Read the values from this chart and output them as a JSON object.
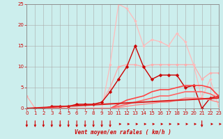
{
  "xlabel": "Vent moyen/en rafales ( km/h )",
  "background_color": "#cceeed",
  "grid_color": "#aaaaaa",
  "xlim": [
    0,
    23
  ],
  "ylim": [
    0,
    25
  ],
  "yticks": [
    0,
    5,
    10,
    15,
    20,
    25
  ],
  "xticks": [
    0,
    1,
    2,
    3,
    4,
    5,
    6,
    7,
    8,
    9,
    10,
    11,
    12,
    13,
    14,
    15,
    16,
    17,
    18,
    19,
    20,
    21,
    22,
    23
  ],
  "lines": [
    {
      "x": [
        0,
        1,
        2,
        3,
        4,
        5,
        6,
        7,
        8,
        9,
        10,
        11,
        12,
        13,
        14,
        15,
        16,
        17,
        18,
        19,
        20,
        21,
        22,
        23
      ],
      "y": [
        3,
        0,
        0,
        0.5,
        0.5,
        0.5,
        1,
        1,
        1,
        1.5,
        5,
        10,
        10.5,
        10.5,
        10,
        10.5,
        10.5,
        10.5,
        10.5,
        10.5,
        10.5,
        7,
        8.5,
        8.5
      ],
      "color": "#ffaaaa",
      "lw": 0.9,
      "marker": "D",
      "ms": 2.0
    },
    {
      "x": [
        0,
        1,
        2,
        3,
        4,
        5,
        6,
        7,
        8,
        9,
        10,
        11,
        12,
        13,
        14,
        15,
        16,
        17,
        18,
        19,
        20,
        21,
        22,
        23
      ],
      "y": [
        0,
        0,
        0,
        0,
        0,
        0,
        0,
        0,
        0,
        0,
        10.5,
        25,
        24,
        21,
        15,
        16.5,
        16,
        15,
        18,
        16,
        10.5,
        2.5,
        7,
        0.5
      ],
      "color": "#ffbbbb",
      "lw": 0.9,
      "marker": "D",
      "ms": 2.0
    },
    {
      "x": [
        0,
        1,
        2,
        3,
        4,
        5,
        6,
        7,
        8,
        9,
        10,
        11,
        12,
        13,
        14,
        15,
        16,
        17,
        18,
        19,
        20,
        21,
        22,
        23
      ],
      "y": [
        0,
        0,
        0,
        0.5,
        0.5,
        0.5,
        1,
        1,
        1,
        1.5,
        4,
        7,
        10,
        15,
        10,
        7,
        8,
        8,
        8,
        5,
        5.5,
        0,
        2.5,
        3
      ],
      "color": "#cc0000",
      "lw": 1.0,
      "marker": "D",
      "ms": 2.5
    },
    {
      "x": [
        0,
        1,
        2,
        3,
        4,
        5,
        6,
        7,
        8,
        9,
        10,
        11,
        12,
        13,
        14,
        15,
        16,
        17,
        18,
        19,
        20,
        21,
        22,
        23
      ],
      "y": [
        0,
        0,
        0,
        0,
        0,
        0,
        0,
        0,
        0,
        0,
        0,
        1,
        2,
        2.5,
        3,
        4,
        4.5,
        4.5,
        5,
        5.5,
        5.5,
        5.5,
        5,
        3
      ],
      "color": "#ff4444",
      "lw": 1.2,
      "marker": null,
      "ms": 0
    },
    {
      "x": [
        0,
        1,
        2,
        3,
        4,
        5,
        6,
        7,
        8,
        9,
        10,
        11,
        12,
        13,
        14,
        15,
        16,
        17,
        18,
        19,
        20,
        21,
        22,
        23
      ],
      "y": [
        0,
        0,
        0,
        0,
        0,
        0,
        0,
        0,
        0,
        0,
        0,
        0.5,
        1,
        1.5,
        2,
        2.5,
        3,
        3,
        3.5,
        4,
        4,
        4,
        3.5,
        2.5
      ],
      "color": "#ff6666",
      "lw": 1.2,
      "marker": null,
      "ms": 0
    },
    {
      "x": [
        0,
        1,
        2,
        3,
        4,
        5,
        6,
        7,
        8,
        9,
        10,
        11,
        12,
        13,
        14,
        15,
        16,
        17,
        18,
        19,
        20,
        21,
        22,
        23
      ],
      "y": [
        0,
        0,
        0,
        0,
        0,
        0,
        0,
        0,
        0,
        0,
        0,
        0.2,
        0.5,
        0.8,
        1,
        1.2,
        1.5,
        1.5,
        2,
        2.5,
        2.5,
        2.5,
        2,
        1.5
      ],
      "color": "#ff8888",
      "lw": 1.0,
      "marker": null,
      "ms": 0
    },
    {
      "x": [
        0,
        23
      ],
      "y": [
        0,
        2.5
      ],
      "color": "#dd2222",
      "lw": 1.5,
      "marker": null,
      "ms": 0
    }
  ],
  "arrow_down_x": [
    0,
    1,
    2,
    3,
    4,
    5,
    6,
    7,
    8,
    9,
    10,
    21
  ],
  "arrow_right_x": [
    11,
    12,
    13,
    14,
    15,
    16,
    17,
    18,
    19,
    20,
    22,
    23
  ],
  "arrow_color": "#cc0000"
}
